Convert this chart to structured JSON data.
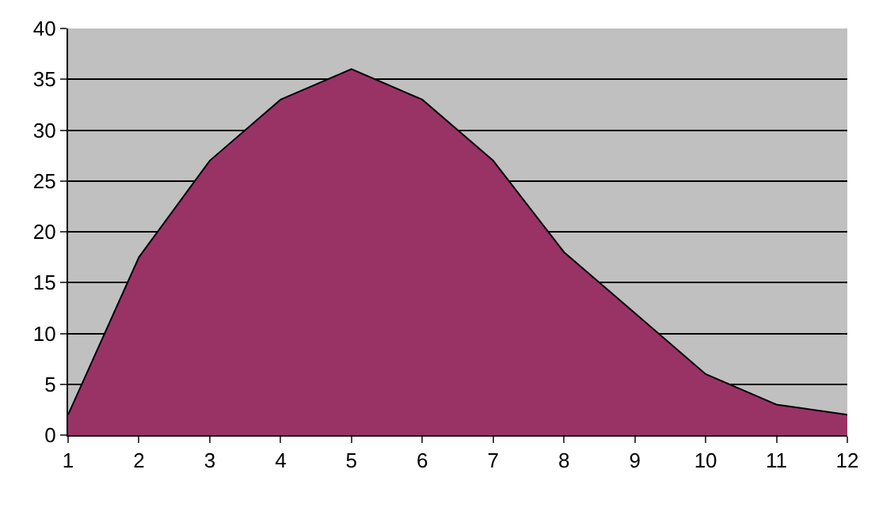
{
  "chart_data": {
    "type": "area",
    "x": [
      1,
      2,
      3,
      4,
      5,
      6,
      7,
      8,
      9,
      10,
      11,
      12
    ],
    "values": [
      2,
      17.5,
      27,
      33,
      36,
      33,
      27,
      18,
      12,
      6,
      3,
      2
    ],
    "color": "#993366",
    "xlim": [
      1,
      12
    ],
    "xticks": [
      1,
      2,
      3,
      4,
      5,
      6,
      7,
      8,
      9,
      10,
      11,
      12
    ],
    "ylim": [
      0,
      40
    ],
    "yticks": [
      0,
      5,
      10,
      15,
      20,
      25,
      30,
      35,
      40
    ],
    "grid": "y"
  }
}
